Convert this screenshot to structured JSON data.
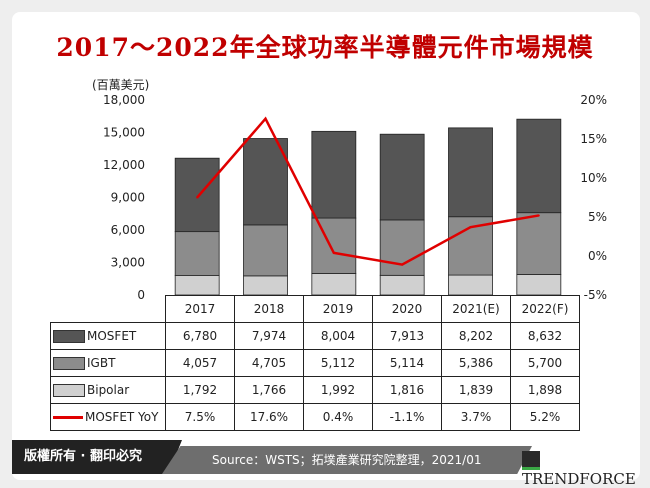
{
  "title": "2017～2022年全球功率半導體元件市場規模",
  "footer": {
    "copyright": "版權所有 · 翻印必究",
    "source": "Source：WSTS；拓墣產業研究院整理，2021/01",
    "logo": "TRENDFORCE"
  },
  "chart_data": {
    "type": "bar",
    "stacked": true,
    "title": "2017～2022年全球功率半導體元件市場規模",
    "ylabel": "(百萬美元)",
    "categories": [
      "2017",
      "2018",
      "2019",
      "2020",
      "2021(E)",
      "2022(F)"
    ],
    "ylim": [
      0,
      18000
    ],
    "yticks": [
      "0",
      "3,000",
      "6,000",
      "9,000",
      "12,000",
      "15,000",
      "18,000"
    ],
    "y2lim": [
      -5,
      20
    ],
    "y2ticks": [
      "-5%",
      "0%",
      "5%",
      "10%",
      "15%",
      "20%"
    ],
    "series": [
      {
        "name": "MOSFET",
        "type": "bar",
        "color": "#555555",
        "values": [
          6780,
          7974,
          8004,
          7913,
          8202,
          8632
        ],
        "labels": [
          "6,780",
          "7,974",
          "8,004",
          "7,913",
          "8,202",
          "8,632"
        ]
      },
      {
        "name": "IGBT",
        "type": "bar",
        "color": "#8c8c8c",
        "values": [
          4057,
          4705,
          5112,
          5114,
          5386,
          5700
        ],
        "labels": [
          "4,057",
          "4,705",
          "5,112",
          "5,114",
          "5,386",
          "5,700"
        ]
      },
      {
        "name": "Bipolar",
        "type": "bar",
        "color": "#d0d0d0",
        "values": [
          1792,
          1766,
          1992,
          1816,
          1839,
          1898
        ],
        "labels": [
          "1,792",
          "1,766",
          "1,992",
          "1,816",
          "1,839",
          "1,898"
        ]
      },
      {
        "name": "MOSFET YoY",
        "type": "line",
        "axis": "right",
        "color": "#e00000",
        "values": [
          7.5,
          17.6,
          0.4,
          -1.1,
          3.7,
          5.2
        ],
        "labels": [
          "7.5%",
          "17.6%",
          "0.4%",
          "-1.1%",
          "3.7%",
          "5.2%"
        ]
      }
    ]
  }
}
